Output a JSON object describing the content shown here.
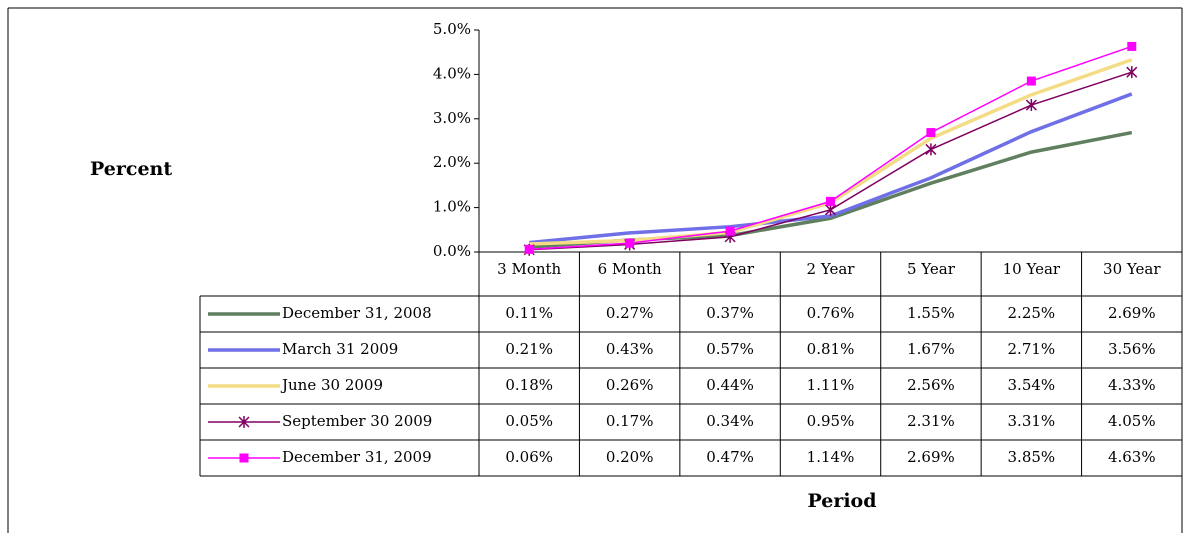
{
  "chart_data": {
    "type": "line",
    "y_label": "Percent",
    "x_label": "Period",
    "categories": [
      "3 Month",
      "6 Month",
      "1 Year",
      "2 Year",
      "5 Year",
      "10 Year",
      "30 Year"
    ],
    "ylim": [
      0,
      5
    ],
    "yticks": [
      {
        "value": 0,
        "label": "0.0%"
      },
      {
        "value": 1,
        "label": "1.0%"
      },
      {
        "value": 2,
        "label": "2.0%"
      },
      {
        "value": 3,
        "label": "3.0%"
      },
      {
        "value": 4,
        "label": "4.0%"
      },
      {
        "value": 5,
        "label": "5.0%"
      }
    ],
    "series": [
      {
        "name": "December 31, 2008",
        "color": "#5f7f5f",
        "values": [
          0.11,
          0.27,
          0.37,
          0.76,
          1.55,
          2.25,
          2.69
        ],
        "value_labels": [
          "0.11%",
          "0.27%",
          "0.37%",
          "0.76%",
          "1.55%",
          "2.25%",
          "2.69%"
        ]
      },
      {
        "name": "March 31 2009",
        "color": "#6f6fe8",
        "values": [
          0.21,
          0.43,
          0.57,
          0.81,
          1.67,
          2.71,
          3.56
        ],
        "value_labels": [
          "0.21%",
          "0.43%",
          "0.57%",
          "0.81%",
          "1.67%",
          "2.71%",
          "3.56%"
        ]
      },
      {
        "name": "June 30 2009",
        "color": "#f3dc84",
        "values": [
          0.18,
          0.26,
          0.44,
          1.11,
          2.56,
          3.54,
          4.33
        ],
        "value_labels": [
          "0.18%",
          "0.26%",
          "0.44%",
          "1.11%",
          "2.56%",
          "3.54%",
          "4.33%"
        ]
      },
      {
        "name": "September 30 2009",
        "color": "#800060",
        "marker": "star",
        "values": [
          0.05,
          0.17,
          0.34,
          0.95,
          2.31,
          3.31,
          4.05
        ],
        "value_labels": [
          "0.05%",
          "0.17%",
          "0.34%",
          "0.95%",
          "2.31%",
          "3.31%",
          "4.05%"
        ]
      },
      {
        "name": "December 31, 2009",
        "color": "#ff00ff",
        "marker": "square",
        "values": [
          0.06,
          0.2,
          0.47,
          1.14,
          2.69,
          3.85,
          4.63
        ],
        "value_labels": [
          "0.06%",
          "0.20%",
          "0.47%",
          "1.14%",
          "2.69%",
          "3.85%",
          "4.63%"
        ]
      }
    ]
  }
}
